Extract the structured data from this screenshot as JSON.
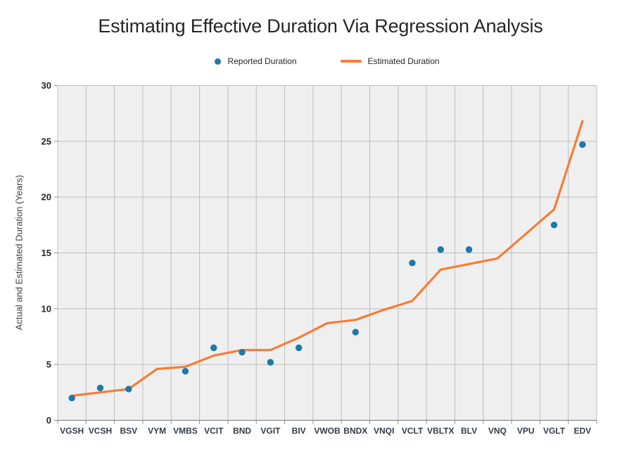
{
  "page": {
    "title": "Estimating Effective Duration Via Regression Analysis"
  },
  "legend": {
    "reported_label": "Reported Duration",
    "estimated_label": "Estimated Duration"
  },
  "y_axis": {
    "title": "Actual and Estimated Duration (Years)",
    "ticks": [
      0,
      5,
      10,
      15,
      20,
      25,
      30
    ]
  },
  "colors": {
    "reported_series": "#1e78a8",
    "estimated_series": "#f67d33",
    "plot_background": "#efefef",
    "gridline": "#bdbdbd",
    "axis_line": "#8a8a8a",
    "title_text": "#262626",
    "tick_text": "#262626",
    "category_text": "#333c47"
  },
  "chart_data": {
    "type": "line",
    "title": "Estimating Effective Duration Via Regression Analysis",
    "categories": [
      "VGSH",
      "VCSH",
      "BSV",
      "VYM",
      "VMBS",
      "VCIT",
      "BND",
      "VGIT",
      "BIV",
      "VWOB",
      "BNDX",
      "VNQI",
      "VCLT",
      "VBLTX",
      "BLV",
      "VNQ",
      "VPU",
      "VGLT",
      "EDV"
    ],
    "series": [
      {
        "name": "Reported Duration",
        "style": "scatter",
        "values": [
          2.0,
          2.9,
          2.8,
          null,
          4.4,
          6.5,
          6.1,
          5.2,
          6.5,
          null,
          7.9,
          null,
          14.1,
          15.3,
          15.3,
          null,
          null,
          17.5,
          24.7
        ]
      },
      {
        "name": "Estimated Duration",
        "style": "line",
        "values": [
          2.2,
          2.5,
          2.8,
          4.6,
          4.8,
          5.8,
          6.3,
          6.3,
          7.4,
          8.7,
          9.0,
          9.9,
          10.7,
          13.5,
          14.0,
          14.5,
          16.7,
          18.9,
          26.8
        ]
      }
    ],
    "xlabel": "",
    "ylabel": "Actual and Estimated Duration (Years)",
    "ylim": [
      0,
      30
    ],
    "ytick_step": 5,
    "grid": true,
    "legend_position": "top-center",
    "plot_area_bg": "#efefef"
  }
}
